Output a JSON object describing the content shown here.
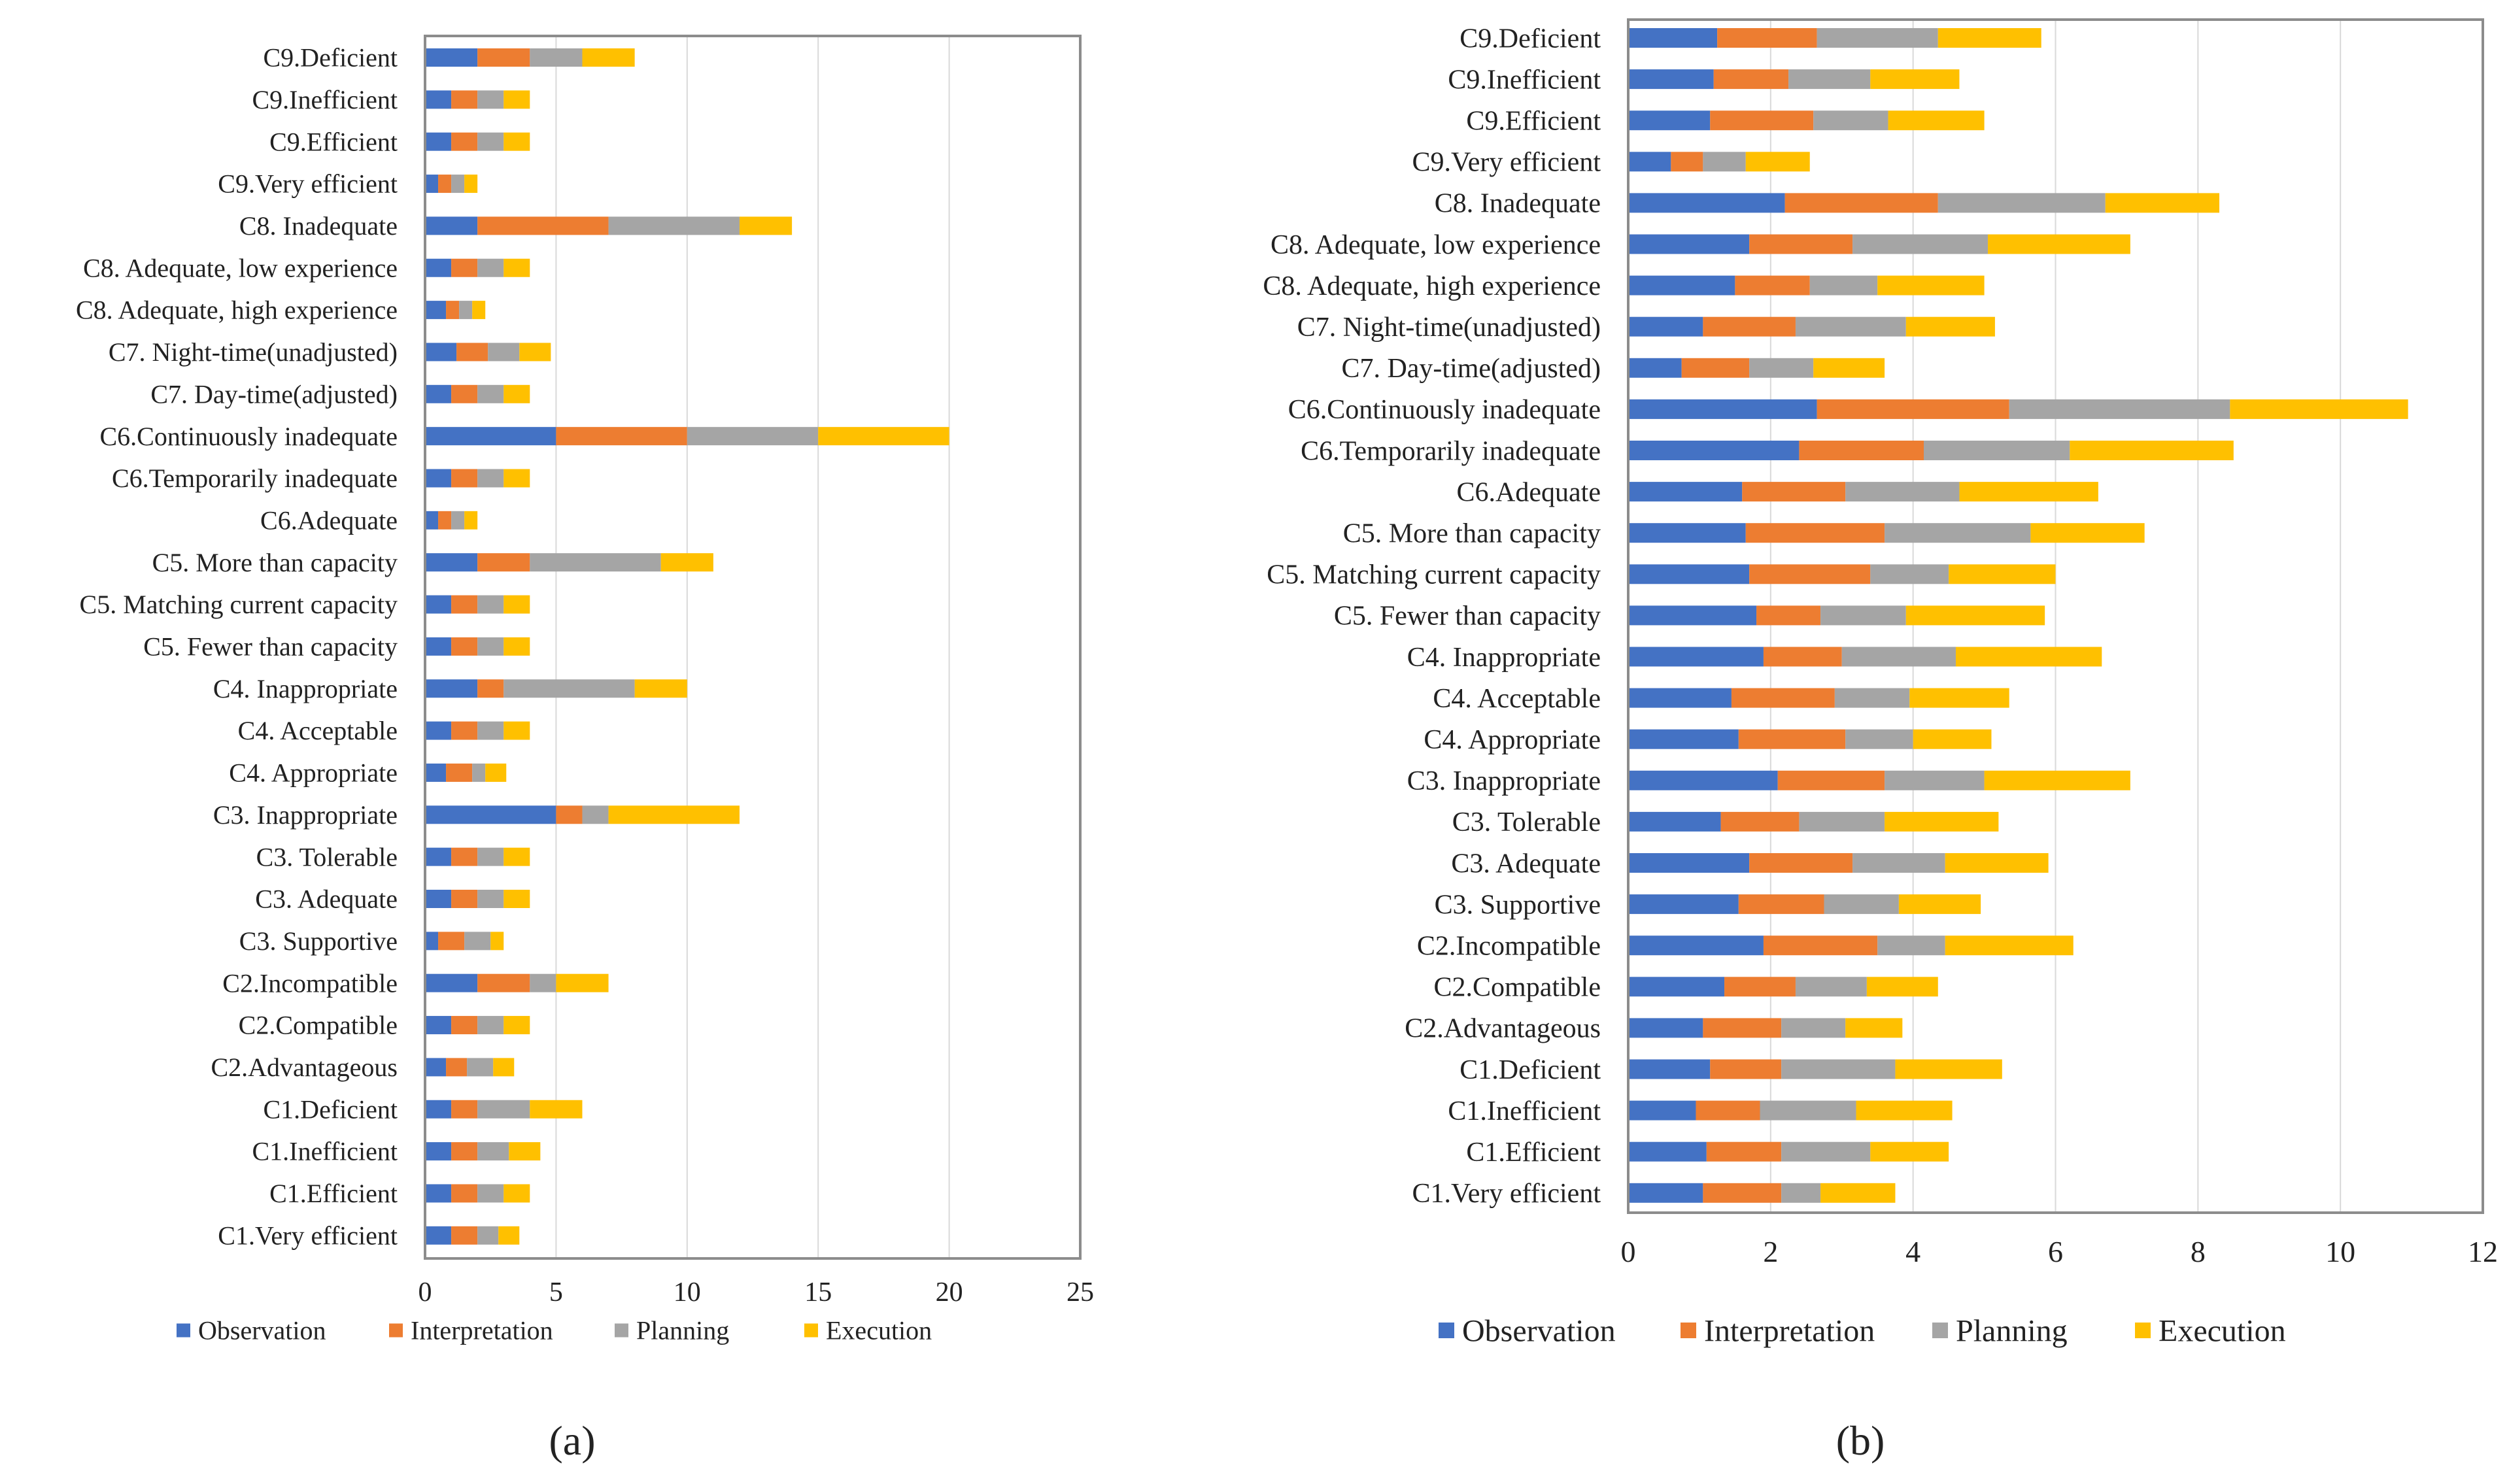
{
  "series_colors": {
    "Observation": "#4472C4",
    "Interpretation": "#ED7D31",
    "Planning": "#A5A5A5",
    "Execution": "#FFC000"
  },
  "chart_data": [
    {
      "type": "bar",
      "orientation": "horizontal",
      "stacked": true,
      "subcaption": "(a)",
      "xlim": [
        0,
        25
      ],
      "xticks": [
        "0",
        "5",
        "10",
        "15",
        "20",
        "25"
      ],
      "grid": true,
      "legend": "bottom",
      "categories": [
        "C9.Deficient",
        "C9.Inefficient",
        "C9.Efficient",
        "C9.Very efficient",
        "C8. Inadequate",
        "C8. Adequate, low experience",
        "C8. Adequate, high experience",
        "C7. Night-time(unadjusted)",
        "C7. Day-time(adjusted)",
        "C6.Continuously inadequate",
        "C6.Temporarily inadequate",
        "C6.Adequate",
        "C5. More than capacity",
        "C5. Matching current capacity",
        "C5. Fewer than capacity",
        "C4. Inappropriate",
        "C4. Acceptable",
        "C4. Appropriate",
        "C3. Inappropriate",
        "C3. Tolerable",
        "C3. Adequate",
        "C3. Supportive",
        "C2.Incompatible",
        "C2.Compatible",
        "C2.Advantageous",
        "C1.Deficient",
        "C1.Inefficient",
        "C1.Efficient",
        "C1.Very efficient"
      ],
      "series": [
        {
          "name": "Observation",
          "values": [
            2,
            1,
            1,
            0.5,
            2,
            1,
            0.8,
            1.2,
            1,
            5,
            1,
            0.5,
            2,
            1,
            1,
            2,
            1,
            0.8,
            5,
            1,
            1,
            0.5,
            2,
            1,
            0.8,
            1,
            1,
            1,
            1
          ]
        },
        {
          "name": "Interpretation",
          "values": [
            2,
            1,
            1,
            0.5,
            5,
            1,
            0.5,
            1.2,
            1,
            5,
            1,
            0.5,
            2,
            1,
            1,
            1,
            1,
            1,
            1,
            1,
            1,
            1,
            2,
            1,
            0.8,
            1,
            1,
            1,
            1
          ]
        },
        {
          "name": "Planning",
          "values": [
            2,
            1,
            1,
            0.5,
            5,
            1,
            0.5,
            1.2,
            1,
            5,
            1,
            0.5,
            5,
            1,
            1,
            5,
            1,
            0.5,
            1,
            1,
            1,
            1,
            1,
            1,
            1,
            2,
            1.2,
            1,
            0.8
          ]
        },
        {
          "name": "Execution",
          "values": [
            2,
            1,
            1,
            0.5,
            2,
            1,
            0.5,
            1.2,
            1,
            5,
            1,
            0.5,
            2,
            1,
            1,
            2,
            1,
            0.8,
            5,
            1,
            1,
            0.5,
            2,
            1,
            0.8,
            2,
            1.2,
            1,
            0.8
          ]
        }
      ]
    },
    {
      "type": "bar",
      "orientation": "horizontal",
      "stacked": true,
      "subcaption": "(b)",
      "xlim": [
        0,
        12
      ],
      "xticks": [
        "0",
        "2",
        "4",
        "6",
        "8",
        "10",
        "12"
      ],
      "grid": true,
      "legend": "bottom",
      "categories": [
        "C9.Deficient",
        "C9.Inefficient",
        "C9.Efficient",
        "C9.Very efficient",
        "C8. Inadequate",
        "C8. Adequate, low experience",
        "C8. Adequate, high experience",
        "C7. Night-time(unadjusted)",
        "C7. Day-time(adjusted)",
        "C6.Continuously inadequate",
        "C6.Temporarily inadequate",
        "C6.Adequate",
        "C5. More than capacity",
        "C5. Matching current capacity",
        "C5. Fewer than capacity",
        "C4. Inappropriate",
        "C4. Acceptable",
        "C4. Appropriate",
        "C3. Inappropriate",
        "C3. Tolerable",
        "C3. Adequate",
        "C3. Supportive",
        "C2.Incompatible",
        "C2.Compatible",
        "C2.Advantageous",
        "C1.Deficient",
        "C1.Inefficient",
        "C1.Efficient",
        "C1.Very efficient"
      ],
      "series": [
        {
          "name": "Observation",
          "values": [
            1.25,
            1.2,
            1.15,
            0.6,
            2.2,
            1.7,
            1.5,
            1.05,
            0.75,
            2.65,
            2.4,
            1.6,
            1.65,
            1.7,
            1.8,
            1.9,
            1.45,
            1.55,
            2.1,
            1.3,
            1.7,
            1.55,
            1.9,
            1.35,
            1.05,
            1.15,
            0.95,
            1.1,
            1.05
          ]
        },
        {
          "name": "Interpretation",
          "values": [
            1.4,
            1.05,
            1.45,
            0.45,
            2.15,
            1.45,
            1.05,
            1.3,
            0.95,
            2.7,
            1.75,
            1.45,
            1.95,
            1.7,
            0.9,
            1.1,
            1.45,
            1.5,
            1.5,
            1.1,
            1.45,
            1.2,
            1.6,
            1.0,
            1.1,
            1.0,
            0.9,
            1.05,
            1.1
          ]
        },
        {
          "name": "Planning",
          "values": [
            1.7,
            1.15,
            1.05,
            0.6,
            2.35,
            1.9,
            0.95,
            1.55,
            0.9,
            3.1,
            2.05,
            1.6,
            2.05,
            1.1,
            1.2,
            1.6,
            1.05,
            0.95,
            1.4,
            1.2,
            1.3,
            1.05,
            0.95,
            1.0,
            0.9,
            1.6,
            1.35,
            1.25,
            0.55
          ]
        },
        {
          "name": "Execution",
          "values": [
            1.45,
            1.25,
            1.35,
            0.9,
            1.6,
            2.0,
            1.5,
            1.25,
            1.0,
            2.5,
            2.3,
            1.95,
            1.6,
            1.5,
            1.95,
            2.05,
            1.4,
            1.1,
            2.05,
            1.6,
            1.45,
            1.15,
            1.8,
            1.0,
            0.8,
            1.5,
            1.35,
            1.1,
            1.05
          ]
        }
      ]
    }
  ]
}
